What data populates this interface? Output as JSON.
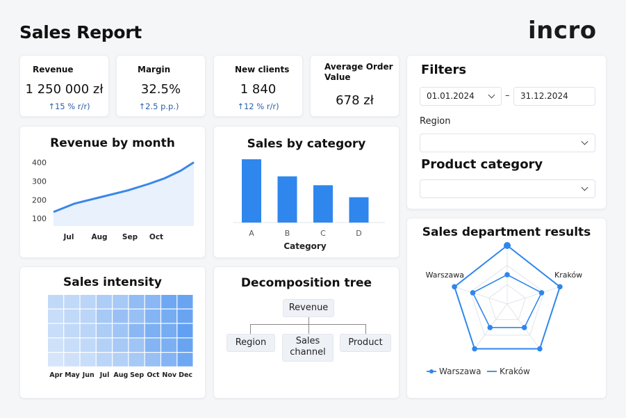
{
  "header": {
    "title": "Sales Report",
    "logo_text": "incro"
  },
  "kpis": [
    {
      "title": "Revenue",
      "value": "1 250 000 zł",
      "delta": "↑15 % r/r)"
    },
    {
      "title": "Margin",
      "value": "32.5%",
      "delta": "↑2.5 p.p.)"
    },
    {
      "title": "New clients",
      "value": "1 840",
      "delta": "↑12 % r/r)"
    },
    {
      "title": "Average Order Value",
      "value": "678 zł",
      "delta": ""
    }
  ],
  "filters": {
    "title": "Filters",
    "date_from": "01.01.2024",
    "date_separator": "–",
    "date_to": "31.12.2024",
    "region_label": "Region",
    "region_value": "",
    "product_category_label": "Product category",
    "product_category_value": ""
  },
  "revenue_chart": {
    "title": "Revenue by month",
    "chart_data": {
      "type": "area",
      "title": "Revenue by month",
      "x_ticks": [
        "Jul",
        "Aug",
        "Sep",
        "Oct"
      ],
      "y_ticks": [
        400,
        300,
        200,
        100
      ],
      "ylim": [
        60,
        420
      ],
      "x": [
        0,
        0.8,
        1.8,
        2.8,
        3.6,
        4.2,
        4.8,
        5.3
      ],
      "y": [
        135,
        180,
        215,
        250,
        285,
        315,
        355,
        400
      ],
      "color": "#3a86e8"
    }
  },
  "category_chart": {
    "title": "Sales by category",
    "chart_data": {
      "type": "bar",
      "title": "Sales by category",
      "categories": [
        "A",
        "B",
        "C",
        "D"
      ],
      "values": [
        100,
        73,
        59,
        40
      ],
      "xlabel": "Category",
      "ylim": [
        0,
        100
      ],
      "color": "#2f86ec"
    }
  },
  "heatmap": {
    "title": "Sales intensity",
    "chart_data": {
      "type": "heatmap",
      "title": "Sales intensity",
      "x_labels": [
        "Apr",
        "May",
        "Jun",
        "Jul",
        "Aug",
        "Sep",
        "Oct",
        "Nov",
        "Dec"
      ],
      "rows": 5,
      "values": [
        [
          0.25,
          0.25,
          0.3,
          0.4,
          0.45,
          0.6,
          0.65,
          0.85,
          0.9
        ],
        [
          0.2,
          0.25,
          0.3,
          0.45,
          0.55,
          0.55,
          0.7,
          0.8,
          0.9
        ],
        [
          0.2,
          0.25,
          0.3,
          0.4,
          0.5,
          0.65,
          0.75,
          0.8,
          0.95
        ],
        [
          0.15,
          0.2,
          0.25,
          0.35,
          0.45,
          0.5,
          0.7,
          0.75,
          0.9
        ],
        [
          0.1,
          0.15,
          0.2,
          0.3,
          0.35,
          0.45,
          0.55,
          0.7,
          0.85
        ]
      ],
      "color_low": "#e3edfb",
      "color_high": "#5b9cf0"
    }
  },
  "decomposition": {
    "title": "Decomposition tree",
    "root": "Revenue",
    "children": [
      "Region",
      "Sales channel",
      "Product"
    ]
  },
  "radar": {
    "title": "Sales department results",
    "chart_data": {
      "type": "radar",
      "title": "Sales department results",
      "axes": 5,
      "axis_labels": [
        "",
        "Kraków",
        "",
        "",
        "Warszawa"
      ],
      "series": [
        {
          "name": "Warszawa",
          "values": [
            1.0,
            0.95,
            0.95,
            0.95,
            0.95
          ],
          "color": "#2f86ec"
        },
        {
          "name": "Kraków",
          "values": [
            0.5,
            0.62,
            0.5,
            0.5,
            0.62
          ],
          "color": "#2f86ec"
        }
      ]
    }
  }
}
